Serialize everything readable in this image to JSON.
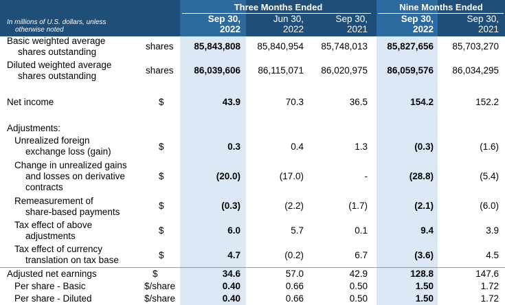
{
  "header": {
    "note_line1": "In millions of U.S. dollars, unless",
    "note_line2": "otherwise noted",
    "group_three": "Three Months Ended",
    "group_nine": "Nine Months Ended",
    "columns": [
      {
        "l1": "Sep 30,",
        "l2": "2022"
      },
      {
        "l1": "Jun 30,",
        "l2": "2022"
      },
      {
        "l1": "Sep 30,",
        "l2": "2021"
      },
      {
        "l1": "Sep 30,",
        "l2": "2022"
      },
      {
        "l1": "Sep 30,",
        "l2": "2021"
      }
    ]
  },
  "rows": [
    {
      "label": [
        "Basic weighted average",
        "shares outstanding"
      ],
      "unit": "shares",
      "values": [
        "85,843,808",
        "85,840,954",
        "85,748,013",
        "85,827,656",
        "85,703,270"
      ]
    },
    {
      "label": [
        "Diluted weighted average",
        "shares outstanding"
      ],
      "unit": "shares",
      "values": [
        "86,039,606",
        "86,115,071",
        "86,020,975",
        "86,059,576",
        "86,034,295"
      ]
    },
    {
      "label": [
        "Net income"
      ],
      "unit": "$",
      "values": [
        "43.9",
        "70.3",
        "36.5",
        "154.2",
        "152.2"
      ]
    },
    {
      "label": [
        "Adjustments:"
      ],
      "unit": "",
      "values": [
        "",
        "",
        "",
        "",
        ""
      ]
    },
    {
      "label": [
        "Unrealized foreign",
        "exchange loss (gain)"
      ],
      "unit": "$",
      "values": [
        "0.3",
        "0.4",
        "1.3",
        "(0.3)",
        "(1.6)"
      ]
    },
    {
      "label": [
        "Change in unrealized gains",
        "and losses on derivative",
        "contracts"
      ],
      "unit": "$",
      "values": [
        "(20.0)",
        "(17.0)",
        "-",
        "(28.8)",
        "(5.4)"
      ]
    },
    {
      "label": [
        "Remeasurement of",
        "share-based payments"
      ],
      "unit": "$",
      "values": [
        "(0.3)",
        "(2.2)",
        "(1.7)",
        "(2.1)",
        "(6.0)"
      ]
    },
    {
      "label": [
        "Tax effect of above",
        "adjustments"
      ],
      "unit": "$",
      "values": [
        "6.0",
        "5.7",
        "0.1",
        "9.4",
        "3.9"
      ]
    },
    {
      "label": [
        "Tax effect of currency",
        "translation on tax base"
      ],
      "unit": "$",
      "values": [
        "4.7",
        "(0.2)",
        "6.7",
        "(3.6)",
        "4.5"
      ]
    },
    {
      "label": [
        "Adjusted net earnings"
      ],
      "unit": "$",
      "values": [
        "34.6",
        "57.0",
        "42.9",
        "128.8",
        "147.6"
      ]
    },
    {
      "label": [
        "Per share - Basic"
      ],
      "unit": "$/share",
      "values": [
        "0.40",
        "0.66",
        "0.50",
        "1.50",
        "1.72"
      ]
    },
    {
      "label": [
        "Per share - Diluted"
      ],
      "unit": "$/share",
      "values": [
        "0.40",
        "0.66",
        "0.50",
        "1.50",
        "1.72"
      ]
    }
  ]
}
